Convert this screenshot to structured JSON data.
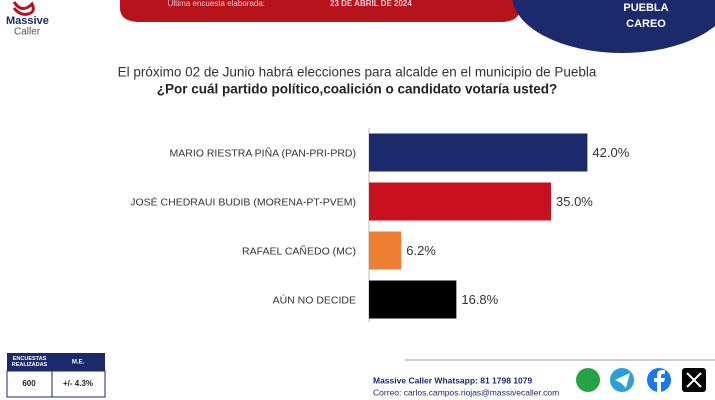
{
  "header": {
    "survey_label": "Última encuesta elaborada:",
    "survey_date": "23 DE ABRIL DE 2024",
    "region": "PUEBLA",
    "subtitle": "CAREO"
  },
  "logo": {
    "line1": "Massive",
    "line2": "Caller"
  },
  "chart_data": {
    "type": "hbar",
    "title": "El próximo 02 de Junio habrá elecciones para alcalde en el municipio de Puebla",
    "subtitle": "¿Por cuál partido político,coalición o candidato votaría usted?",
    "categories": [
      "MARIO RIESTRA PIÑA (PAN-PRI-PRD)",
      "JOSÉ CHEDRAUI BUDIB (MORENA-PT-PVEM)",
      "RAFAEL CAÑEDO (MC)",
      "AÚN NO DECIDE"
    ],
    "values": [
      42.0,
      35.0,
      6.2,
      16.8
    ],
    "value_labels": [
      "42.0%",
      "35.0%",
      "6.2%",
      "16.8%"
    ],
    "colors": [
      "#1b2a6b",
      "#c8101e",
      "#ec7f32",
      "#000000"
    ]
  },
  "table": {
    "headers": [
      "ENCUESTAS REALIZADAS",
      "M.E."
    ],
    "rows": [
      [
        "600",
        "+/- 4.3%"
      ]
    ]
  },
  "footer": {
    "whatsapp": "Massive Caller Whatsapp: 81 1798 1079",
    "email": "Correo: carlos.campos.riojas@massivecaller.com"
  }
}
